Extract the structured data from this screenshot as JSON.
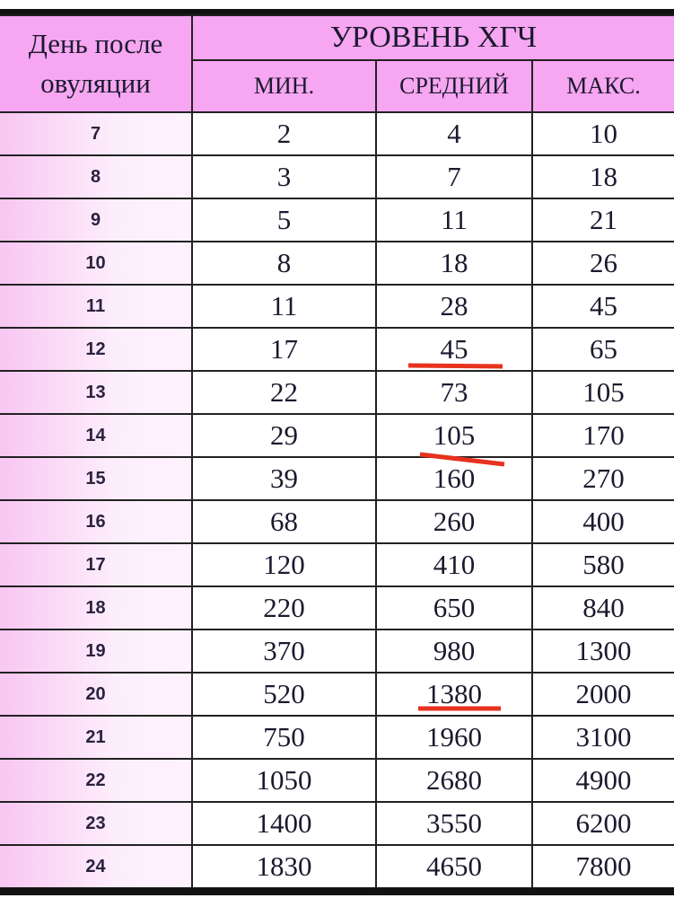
{
  "header": {
    "day_label": "День после овуляции",
    "level_label": "УРОВЕНЬ ХГЧ",
    "columns": [
      "МИН.",
      "СРЕДНИЙ",
      "МАКС."
    ]
  },
  "rows": [
    {
      "day": "7",
      "min": "2",
      "avg": "4",
      "max": "10"
    },
    {
      "day": "8",
      "min": "3",
      "avg": "7",
      "max": "18"
    },
    {
      "day": "9",
      "min": "5",
      "avg": "11",
      "max": "21"
    },
    {
      "day": "10",
      "min": "8",
      "avg": "18",
      "max": "26"
    },
    {
      "day": "11",
      "min": "11",
      "avg": "28",
      "max": "45"
    },
    {
      "day": "12",
      "min": "17",
      "avg": "45",
      "max": "65"
    },
    {
      "day": "13",
      "min": "22",
      "avg": "73",
      "max": "105"
    },
    {
      "day": "14",
      "min": "29",
      "avg": "105",
      "max": "170"
    },
    {
      "day": "15",
      "min": "39",
      "avg": "160",
      "max": "270"
    },
    {
      "day": "16",
      "min": "68",
      "avg": "260",
      "max": "400"
    },
    {
      "day": "17",
      "min": "120",
      "avg": "410",
      "max": "580"
    },
    {
      "day": "18",
      "min": "220",
      "avg": "650",
      "max": "840"
    },
    {
      "day": "19",
      "min": "370",
      "avg": "980",
      "max": "1300"
    },
    {
      "day": "20",
      "min": "520",
      "avg": "1380",
      "max": "2000"
    },
    {
      "day": "21",
      "min": "750",
      "avg": "1960",
      "max": "3100"
    },
    {
      "day": "22",
      "min": "1050",
      "avg": "2680",
      "max": "4900"
    },
    {
      "day": "23",
      "min": "1400",
      "avg": "3550",
      "max": "6200"
    },
    {
      "day": "24",
      "min": "1830",
      "avg": "4650",
      "max": "7800"
    }
  ],
  "annotations": {
    "underlined_avg_days": [
      "12",
      "14",
      "20"
    ],
    "underline_color": "#e8321e"
  },
  "colors": {
    "header_bg": "#f7a6f2",
    "day_col_bg": "#fdeefc"
  }
}
